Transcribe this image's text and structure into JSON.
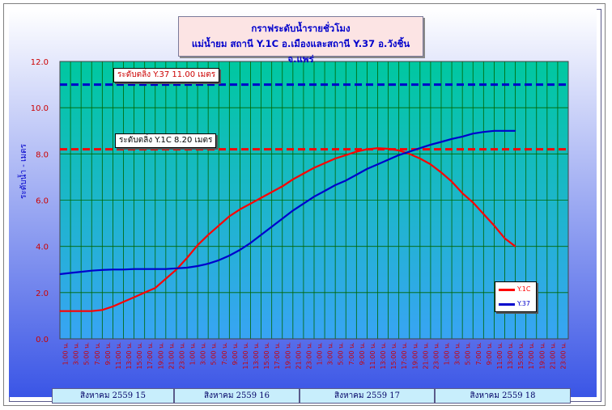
{
  "chart_data": {
    "type": "line",
    "title": "กราฟระดับน้ำรายชั่วโมง",
    "subtitle": "แม่น้ำยม สถานี Y.1C อ.เมืองและสถานี Y.37 อ.วังชิ้น จ.แพร่",
    "ylabel": "ระดับน้ำ - เมตร",
    "ylim": [
      0,
      12
    ],
    "yticks": [
      "0.0",
      "2.0",
      "4.0",
      "6.0",
      "8.0",
      "10.0",
      "12.0"
    ],
    "grid": true,
    "legend_position": "right",
    "x_tick_labels": [
      "1:00 น.",
      "3:00 น.",
      "5:00 น.",
      "7:00 น.",
      "9:00 น.",
      "11:00 น.",
      "13:00 น.",
      "15:00 น.",
      "17:00 น.",
      "19:00 น.",
      "21:00 น.",
      "23:00 น.",
      "1:00 น.",
      "3:00 น.",
      "5:00 น.",
      "7:00 น.",
      "9:00 น.",
      "11:00 น.",
      "13:00 น.",
      "15:00 น.",
      "17:00 น.",
      "19:00 น.",
      "21:00 น.",
      "23:00 น.",
      "1:00 น.",
      "3:00 น.",
      "5:00 น.",
      "7:00 น.",
      "9:00 น.",
      "11:00 น.",
      "13:00 น.",
      "15:00 น.",
      "17:00 น.",
      "19:00 น.",
      "21:00 น.",
      "23:00 น.",
      "1:00 น.",
      "3:00 น.",
      "5:00 น.",
      "7:00 น.",
      "9:00 น.",
      "11:00 น.",
      "13:00 น.",
      "15:00 น.",
      "17:00 น.",
      "19:00 น.",
      "21:00 น.",
      "23:00 น."
    ],
    "days": [
      "สิงหาคม 2559 15",
      "สิงหาคม 2559 16",
      "สิงหาคม 2559 17",
      "สิงหาคม 2559 18"
    ],
    "day_hours": [
      [
        1,
        23
      ],
      [
        1,
        23
      ],
      [
        1,
        23
      ],
      [
        1,
        23
      ]
    ],
    "series": [
      {
        "name": "Y.1C",
        "color": "#ff0000",
        "x": [
          1,
          3,
          5,
          7,
          9,
          11,
          13,
          15,
          17,
          19,
          21,
          23,
          25,
          27,
          29,
          31,
          33,
          35,
          37,
          39,
          41,
          43,
          45,
          47,
          49,
          51,
          53,
          55,
          57,
          59,
          61,
          63,
          65,
          67,
          69,
          71,
          73,
          75,
          77,
          79,
          81,
          83,
          85,
          87
        ],
        "values": [
          1.2,
          1.2,
          1.2,
          1.2,
          1.25,
          1.4,
          1.6,
          1.8,
          2.0,
          2.2,
          2.6,
          3.0,
          3.5,
          4.05,
          4.5,
          4.9,
          5.3,
          5.6,
          5.85,
          6.1,
          6.35,
          6.6,
          6.9,
          7.15,
          7.4,
          7.6,
          7.8,
          7.95,
          8.1,
          8.2,
          8.25,
          8.22,
          8.15,
          8.0,
          7.8,
          7.55,
          7.2,
          6.8,
          6.3,
          5.9,
          5.4,
          4.9,
          4.35,
          4.0
        ]
      },
      {
        "name": "Y.37",
        "color": "#0000cc",
        "x": [
          1,
          3,
          5,
          7,
          9,
          11,
          13,
          15,
          17,
          19,
          21,
          23,
          25,
          27,
          29,
          31,
          33,
          35,
          37,
          39,
          41,
          43,
          45,
          47,
          49,
          51,
          53,
          55,
          57,
          59,
          61,
          63,
          65,
          67,
          69,
          71,
          73,
          75,
          77,
          79,
          81,
          83,
          85,
          87
        ],
        "values": [
          2.8,
          2.85,
          2.9,
          2.95,
          2.98,
          3.0,
          3.0,
          3.02,
          3.02,
          3.02,
          3.02,
          3.05,
          3.08,
          3.15,
          3.25,
          3.4,
          3.6,
          3.85,
          4.15,
          4.5,
          4.85,
          5.2,
          5.55,
          5.85,
          6.15,
          6.4,
          6.65,
          6.85,
          7.1,
          7.35,
          7.55,
          7.75,
          7.95,
          8.1,
          8.25,
          8.4,
          8.52,
          8.65,
          8.75,
          8.88,
          8.95,
          9.0,
          9.0,
          9.0
        ]
      }
    ],
    "reference_lines": [
      {
        "label": "ระดับตลิ่ง Y.37 11.00 เมตร",
        "value": 11.0,
        "color": "#0000cc",
        "text_color": "#cc0000"
      },
      {
        "label": "ระดับตลิ่ง  Y.1C 8.20 เมตร",
        "value": 8.2,
        "color": "#ff0000",
        "text_color": "#000000"
      }
    ],
    "colors": {
      "plot_top": "#00c8a0",
      "plot_bottom": "#38a4f4",
      "frame_bg_top": "#ffffff",
      "frame_bg_bottom": "#3a55e6",
      "grid": "#006600",
      "axis_text": "#cc0000",
      "ylabel_color": "#0000cc"
    }
  }
}
